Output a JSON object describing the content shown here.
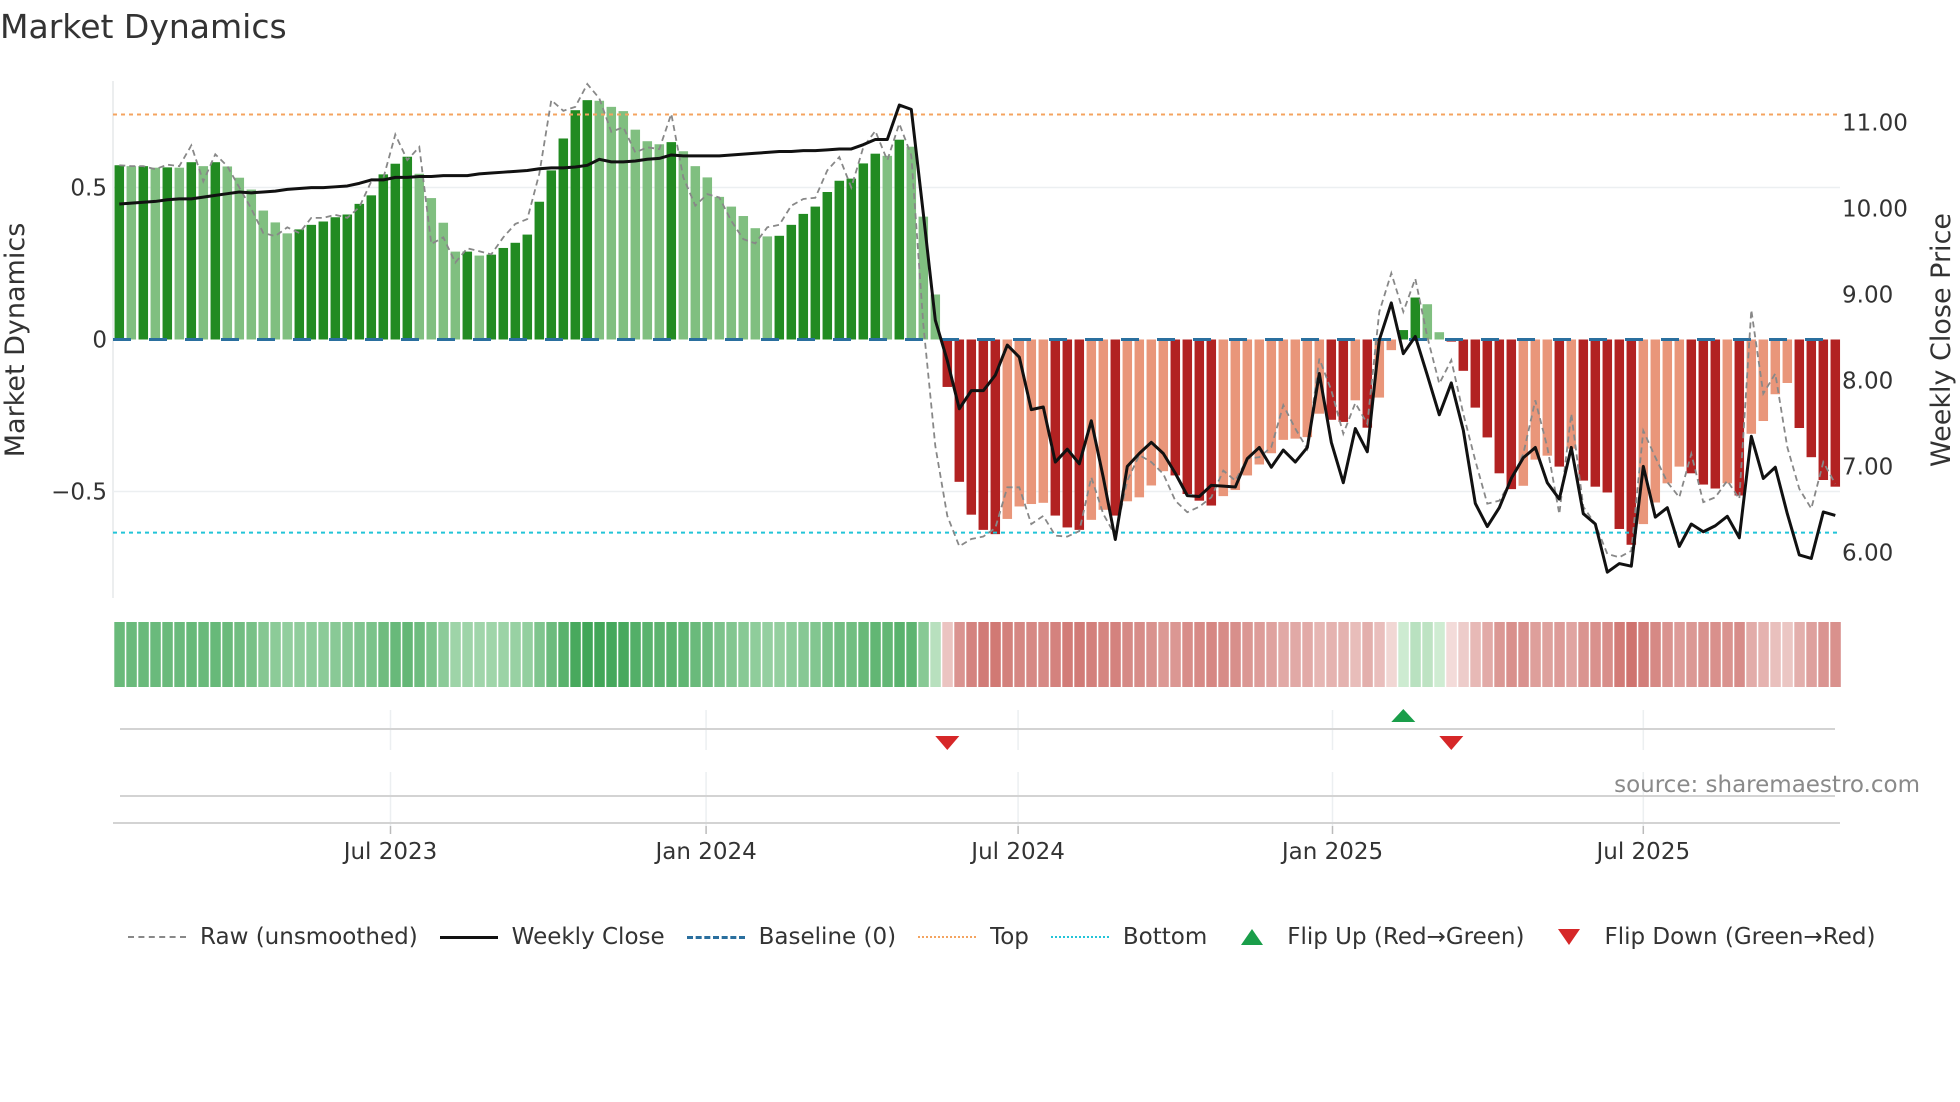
{
  "title": "Market Dynamics",
  "source": "source: sharemaestro.com",
  "colors": {
    "green_up": "#228b22",
    "green_down": "#80bf80",
    "red_down": "#b22222",
    "red_up": "#e9967a",
    "baseline": "#2a6f9e",
    "top": "#f4a460",
    "bottom": "#22c4d8",
    "raw": "#888888",
    "close": "#111111",
    "flip_up": "#1a9e4a",
    "flip_down": "#d62728",
    "strip_green_light": "#d3eed6",
    "strip_green_dark": "#3fa556",
    "strip_red_light": "#f3dcda",
    "strip_red_dark": "#c8605b"
  },
  "chart_data": {
    "type": "bar",
    "title": "Market Dynamics",
    "ylabel": "Market Dynamics",
    "y2label": "Weekly Close Price",
    "ylim": [
      -0.85,
      0.85
    ],
    "y2lim": [
      5.47,
      11.48
    ],
    "yticks": [
      {
        "v": 0.5,
        "label": "0.5"
      },
      {
        "v": 0,
        "label": "0"
      },
      {
        "v": -0.5,
        "label": "−0.5"
      }
    ],
    "y2ticks": [
      {
        "v": 11,
        "label": "11.00"
      },
      {
        "v": 10,
        "label": "10.00"
      },
      {
        "v": 9,
        "label": "9.00"
      },
      {
        "v": 8,
        "label": "8.00"
      },
      {
        "v": 7,
        "label": "7.00"
      },
      {
        "v": 6,
        "label": "6.00"
      }
    ],
    "xticks": [
      {
        "week": 22.6,
        "label": "Jul 2023"
      },
      {
        "week": 48.9,
        "label": "Jan 2024"
      },
      {
        "week": 74.9,
        "label": "Jul 2024"
      },
      {
        "week": 101.1,
        "label": "Jan 2025"
      },
      {
        "week": 127.0,
        "label": "Jul 2025"
      }
    ],
    "top_level": 0.74,
    "bottom_level": -0.635,
    "baseline": 0,
    "bars": [
      0.573,
      0.57,
      0.57,
      0.565,
      0.566,
      0.565,
      0.583,
      0.57,
      0.583,
      0.569,
      0.532,
      0.493,
      0.424,
      0.385,
      0.349,
      0.362,
      0.377,
      0.388,
      0.402,
      0.411,
      0.446,
      0.474,
      0.543,
      0.578,
      0.601,
      0.545,
      0.465,
      0.384,
      0.289,
      0.289,
      0.276,
      0.279,
      0.301,
      0.318,
      0.345,
      0.453,
      0.556,
      0.661,
      0.754,
      0.787,
      0.785,
      0.765,
      0.751,
      0.69,
      0.652,
      0.642,
      0.649,
      0.619,
      0.57,
      0.533,
      0.469,
      0.437,
      0.406,
      0.366,
      0.339,
      0.341,
      0.377,
      0.413,
      0.437,
      0.485,
      0.522,
      0.529,
      0.579,
      0.611,
      0.604,
      0.657,
      0.634,
      0.404,
      0.148,
      -0.156,
      -0.468,
      -0.576,
      -0.626,
      -0.64,
      -0.59,
      -0.549,
      -0.541,
      -0.537,
      -0.579,
      -0.618,
      -0.626,
      -0.593,
      -0.56,
      -0.579,
      -0.532,
      -0.519,
      -0.48,
      -0.433,
      -0.447,
      -0.508,
      -0.53,
      -0.546,
      -0.515,
      -0.495,
      -0.447,
      -0.411,
      -0.374,
      -0.33,
      -0.326,
      -0.321,
      -0.244,
      -0.264,
      -0.271,
      -0.2,
      -0.29,
      -0.191,
      -0.035,
      0.031,
      0.138,
      0.116,
      0.024,
      -0.007,
      -0.103,
      -0.224,
      -0.322,
      -0.44,
      -0.492,
      -0.481,
      -0.395,
      -0.382,
      -0.418,
      -0.359,
      -0.464,
      -0.484,
      -0.503,
      -0.623,
      -0.675,
      -0.607,
      -0.536,
      -0.473,
      -0.418,
      -0.44,
      -0.477,
      -0.49,
      -0.473,
      -0.513,
      -0.31,
      -0.268,
      -0.18,
      -0.143,
      -0.291,
      -0.387,
      -0.462,
      -0.484
    ],
    "raw": [
      0.573,
      0.57,
      0.57,
      0.56,
      0.575,
      0.57,
      0.638,
      0.52,
      0.609,
      0.57,
      0.5,
      0.43,
      0.35,
      0.34,
      0.369,
      0.35,
      0.4,
      0.4,
      0.41,
      0.4,
      0.435,
      0.52,
      0.53,
      0.674,
      0.59,
      0.633,
      0.314,
      0.336,
      0.253,
      0.3,
      0.29,
      0.28,
      0.336,
      0.38,
      0.396,
      0.545,
      0.787,
      0.752,
      0.765,
      0.84,
      0.793,
      0.683,
      0.698,
      0.615,
      0.632,
      0.626,
      0.742,
      0.533,
      0.44,
      0.478,
      0.467,
      0.39,
      0.33,
      0.316,
      0.369,
      0.377,
      0.44,
      0.462,
      0.466,
      0.556,
      0.6,
      0.5,
      0.632,
      0.686,
      0.589,
      0.71,
      0.605,
      0.05,
      -0.35,
      -0.58,
      -0.68,
      -0.656,
      -0.648,
      -0.62,
      -0.486,
      -0.486,
      -0.607,
      -0.58,
      -0.645,
      -0.648,
      -0.63,
      -0.453,
      -0.574,
      -0.645,
      -0.464,
      -0.38,
      -0.403,
      -0.442,
      -0.53,
      -0.568,
      -0.55,
      -0.519,
      -0.431,
      -0.464,
      -0.392,
      -0.387,
      -0.354,
      -0.216,
      -0.293,
      -0.36,
      -0.063,
      -0.167,
      -0.31,
      -0.209,
      -0.277,
      0.091,
      0.218,
      0.091,
      0.2,
      0.009,
      -0.145,
      -0.068,
      -0.244,
      -0.398,
      -0.54,
      -0.53,
      -0.464,
      -0.376,
      -0.2,
      -0.354,
      -0.574,
      -0.244,
      -0.55,
      -0.607,
      -0.705,
      -0.716,
      -0.695,
      -0.3,
      -0.387,
      -0.469,
      -0.519,
      -0.376,
      -0.535,
      -0.519,
      -0.464,
      -0.524,
      0.097,
      -0.178,
      -0.112,
      -0.354,
      -0.491,
      -0.556,
      -0.403,
      -0.475
    ],
    "close": [
      10.05,
      10.06,
      10.07,
      10.08,
      10.1,
      10.11,
      10.11,
      10.13,
      10.15,
      10.17,
      10.19,
      10.18,
      10.19,
      10.2,
      10.22,
      10.23,
      10.24,
      10.24,
      10.25,
      10.26,
      10.29,
      10.33,
      10.33,
      10.36,
      10.36,
      10.37,
      10.37,
      10.38,
      10.38,
      10.38,
      10.4,
      10.41,
      10.42,
      10.43,
      10.44,
      10.46,
      10.47,
      10.47,
      10.48,
      10.5,
      10.57,
      10.54,
      10.54,
      10.55,
      10.57,
      10.58,
      10.62,
      10.61,
      10.61,
      10.61,
      10.61,
      10.62,
      10.63,
      10.64,
      10.65,
      10.66,
      10.66,
      10.67,
      10.67,
      10.68,
      10.69,
      10.69,
      10.74,
      10.8,
      10.8,
      11.2,
      11.15,
      9.94,
      8.7,
      8.23,
      7.67,
      7.88,
      7.88,
      8.06,
      8.41,
      8.27,
      7.66,
      7.69,
      7.05,
      7.2,
      7.03,
      7.53,
      6.87,
      6.15,
      7.0,
      7.15,
      7.28,
      7.15,
      6.92,
      6.66,
      6.65,
      6.78,
      6.77,
      6.76,
      7.09,
      7.22,
      6.99,
      7.19,
      7.05,
      7.22,
      8.08,
      7.28,
      6.81,
      7.44,
      7.17,
      8.47,
      8.9,
      8.31,
      8.51,
      8.06,
      7.6,
      7.97,
      7.42,
      6.57,
      6.3,
      6.52,
      6.86,
      7.1,
      7.22,
      6.81,
      6.62,
      7.22,
      6.45,
      6.33,
      5.77,
      5.87,
      5.84,
      7.0,
      6.41,
      6.52,
      6.07,
      6.33,
      6.24,
      6.31,
      6.42,
      6.17,
      7.35,
      6.86,
      6.99,
      6.45,
      5.97,
      5.93,
      6.47,
      6.43
    ],
    "flips": [
      {
        "week": 69,
        "dir": "down"
      },
      {
        "week": 107,
        "dir": "up"
      },
      {
        "week": 111,
        "dir": "down"
      }
    ],
    "legend": [
      {
        "key": "raw",
        "label": "Raw (unsmoothed)"
      },
      {
        "key": "close",
        "label": "Weekly Close"
      },
      {
        "key": "baseline",
        "label": "Baseline (0)"
      },
      {
        "key": "top",
        "label": "Top"
      },
      {
        "key": "bottom",
        "label": "Bottom"
      },
      {
        "key": "flip_up",
        "label": "Flip Up (Red→Green)"
      },
      {
        "key": "flip_down",
        "label": "Flip Down (Green→Red)"
      }
    ],
    "legend_position": "bottom"
  }
}
